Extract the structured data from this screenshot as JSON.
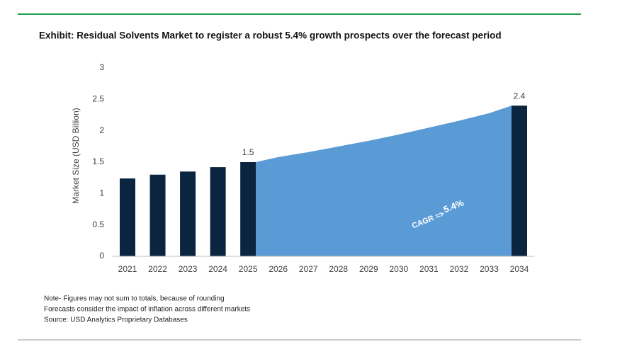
{
  "chart_data": {
    "type": "bar",
    "title": "Exhibit: Residual Solvents Market to register a robust 5.4% growth prospects over the forecast period",
    "y_label": "Market Size (USD Billion)",
    "categories": [
      "2021",
      "2022",
      "2023",
      "2024",
      "2025",
      "2026",
      "2027",
      "2028",
      "2029",
      "2030",
      "2031",
      "2032",
      "2033",
      "2034"
    ],
    "series": [
      {
        "type": "bar",
        "color": "#0b2540",
        "values": [
          1.24,
          1.3,
          1.35,
          1.42,
          1.5,
          null,
          null,
          null,
          null,
          null,
          null,
          null,
          null,
          2.4
        ],
        "value_labels": [
          null,
          null,
          null,
          null,
          "1.5",
          null,
          null,
          null,
          null,
          null,
          null,
          null,
          null,
          "2.4"
        ]
      },
      {
        "type": "area",
        "color": "#5b9bd5",
        "values": [
          null,
          null,
          null,
          null,
          1.5,
          1.58,
          1.66,
          1.75,
          1.84,
          1.94,
          2.05,
          2.16,
          2.28,
          2.4
        ]
      }
    ],
    "ylim": [
      0,
      3
    ],
    "yticks": [
      0,
      0.5,
      1,
      1.5,
      2,
      2.5,
      3
    ],
    "annotations": [
      "CAGR =>",
      "5.4%"
    ],
    "notes": [
      "Note- Figures may not sum to totals, because of rounding",
      "Forecasts consider the impact of inflation across different markets",
      "Source: USD Analytics Proprietary Databases"
    ]
  }
}
